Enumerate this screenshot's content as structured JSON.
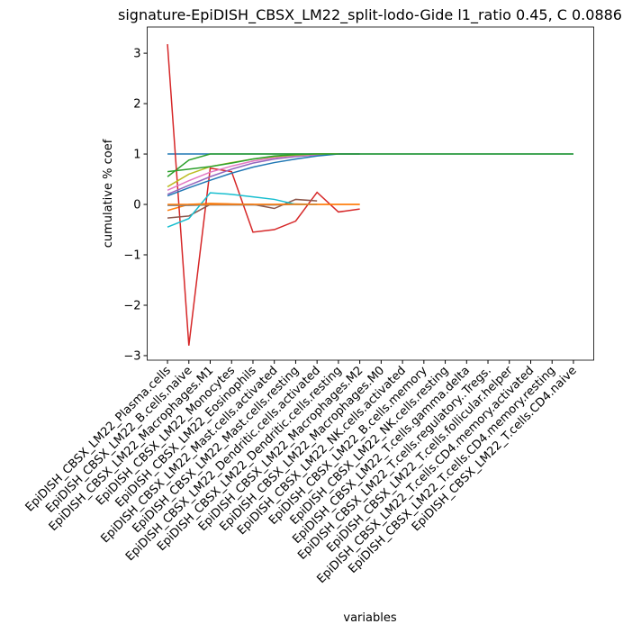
{
  "chart_data": {
    "type": "line",
    "title": "signature-EpiDISH_CBSX_LM22_split-lodo-Gide l1_ratio 0.45, C 0.0886",
    "xlabel": "variables",
    "ylabel": "cumulative % coef",
    "categories": [
      "EpiDISH_CBSX_LM22_Plasma.cells",
      "EpiDISH_CBSX_LM22_B.cells.naive",
      "EpiDISH_CBSX_LM22_Macrophages.M1",
      "EpiDISH_CBSX_LM22_Monocytes",
      "EpiDISH_CBSX_LM22_Eosinophils",
      "EpiDISH_CBSX_LM22_Mast.cells.activated",
      "EpiDISH_CBSX_LM22_Mast.cells.resting",
      "EpiDISH_CBSX_LM22_Dendritic.cells.activated",
      "EpiDISH_CBSX_LM22_Dendritic.cells.resting",
      "EpiDISH_CBSX_LM22_Macrophages.M2",
      "EpiDISH_CBSX_LM22_Macrophages.M0",
      "EpiDISH_CBSX_LM22_NK.cells.activated",
      "EpiDISH_CBSX_LM22_B.cells.memory",
      "EpiDISH_CBSX_LM22_NK.cells.resting",
      "EpiDISH_CBSX_LM22_T.cells.gamma.delta",
      "EpiDISH_CBSX_LM22_T.cells.regulatory..Tregs.",
      "EpiDISH_CBSX_LM22_T.cells.follicular.helper",
      "EpiDISH_CBSX_LM22_T.cells.CD4.memory.activated",
      "EpiDISH_CBSX_LM22_T.cells.CD4.memory.resting",
      "EpiDISH_CBSX_LM22_T.cells.CD4.naive"
    ],
    "series": [
      {
        "color": "#1f77b4",
        "values": [
          1,
          1,
          1,
          1,
          1,
          1,
          1,
          1,
          1,
          1,
          1,
          1,
          1,
          1,
          1,
          1,
          1,
          1,
          1,
          1
        ]
      },
      {
        "color": "#ff7f0e",
        "values": [
          -0.12,
          0,
          0.02,
          0.01,
          0,
          0,
          0.01,
          0,
          0,
          0,
          null,
          null,
          null,
          null,
          null,
          null,
          null,
          null,
          null,
          null
        ]
      },
      {
        "color": "#2ca02c",
        "values": [
          0.55,
          0.88,
          1,
          1,
          1,
          1,
          1,
          1,
          1,
          1,
          1,
          1,
          1,
          1,
          1,
          1,
          1,
          1,
          1,
          1
        ]
      },
      {
        "color": "#d62728",
        "values": [
          3.18,
          -2.8,
          0.72,
          0.65,
          -0.55,
          -0.5,
          -0.33,
          0.24,
          -0.15,
          -0.09,
          null,
          null,
          null,
          null,
          null,
          null,
          null,
          null,
          null,
          null
        ]
      },
      {
        "color": "#9467bd",
        "values": [
          0.2,
          0.38,
          0.55,
          0.7,
          0.82,
          0.9,
          0.95,
          0.98,
          1,
          1,
          null,
          null,
          null,
          null,
          null,
          null,
          null,
          null,
          null,
          null
        ]
      },
      {
        "color": "#8c564b",
        "values": [
          -0.27,
          -0.23,
          0,
          0,
          0,
          -0.08,
          0.1,
          0.07,
          null,
          null,
          null,
          null,
          null,
          null,
          null,
          null,
          null,
          null,
          null,
          null
        ]
      },
      {
        "color": "#e377c2",
        "values": [
          0.28,
          0.47,
          0.64,
          0.76,
          0.86,
          0.93,
          0.97,
          0.99,
          1,
          null,
          null,
          null,
          null,
          null,
          null,
          null,
          null,
          null,
          null,
          null
        ]
      },
      {
        "color": "#7f7f7f",
        "values": [
          -0.02,
          -0.02,
          -0.01,
          -0.01,
          -0.01,
          -0.01,
          0,
          0,
          null,
          null,
          null,
          null,
          null,
          null,
          null,
          null,
          null,
          null,
          null,
          null
        ]
      },
      {
        "color": "#bcbd22",
        "values": [
          0.35,
          0.6,
          0.75,
          0.83,
          0.9,
          0.95,
          0.98,
          1,
          1,
          null,
          null,
          null,
          null,
          null,
          null,
          null,
          null,
          null,
          null,
          null
        ]
      },
      {
        "color": "#17becf",
        "values": [
          -0.45,
          -0.28,
          0.23,
          0.2,
          0.15,
          0.1,
          0,
          0,
          null,
          null,
          null,
          null,
          null,
          null,
          null,
          null,
          null,
          null,
          null,
          null
        ]
      },
      {
        "color": "#1f77b4",
        "values": [
          0.17,
          0.33,
          0.48,
          0.62,
          0.74,
          0.83,
          0.9,
          0.96,
          1,
          1,
          null,
          null,
          null,
          null,
          null,
          null,
          null,
          null,
          null,
          null
        ]
      },
      {
        "color": "#ff7f0e",
        "values": [
          0,
          0,
          0,
          0,
          0,
          0,
          0,
          0,
          0,
          0,
          null,
          null,
          null,
          null,
          null,
          null,
          null,
          null,
          null,
          null
        ]
      },
      {
        "color": "#2ca02c",
        "values": [
          0.65,
          0.7,
          0.75,
          0.82,
          0.9,
          0.96,
          0.99,
          1,
          1,
          1,
          null,
          null,
          null,
          null,
          null,
          null,
          null,
          null,
          null,
          null
        ]
      }
    ],
    "ylim": [
      -3.09,
      3.52
    ],
    "yticks": [
      {
        "value": -3,
        "label": "−3"
      },
      {
        "value": -2,
        "label": "−2"
      },
      {
        "value": -1,
        "label": "−1"
      },
      0,
      1,
      2,
      3
    ]
  }
}
